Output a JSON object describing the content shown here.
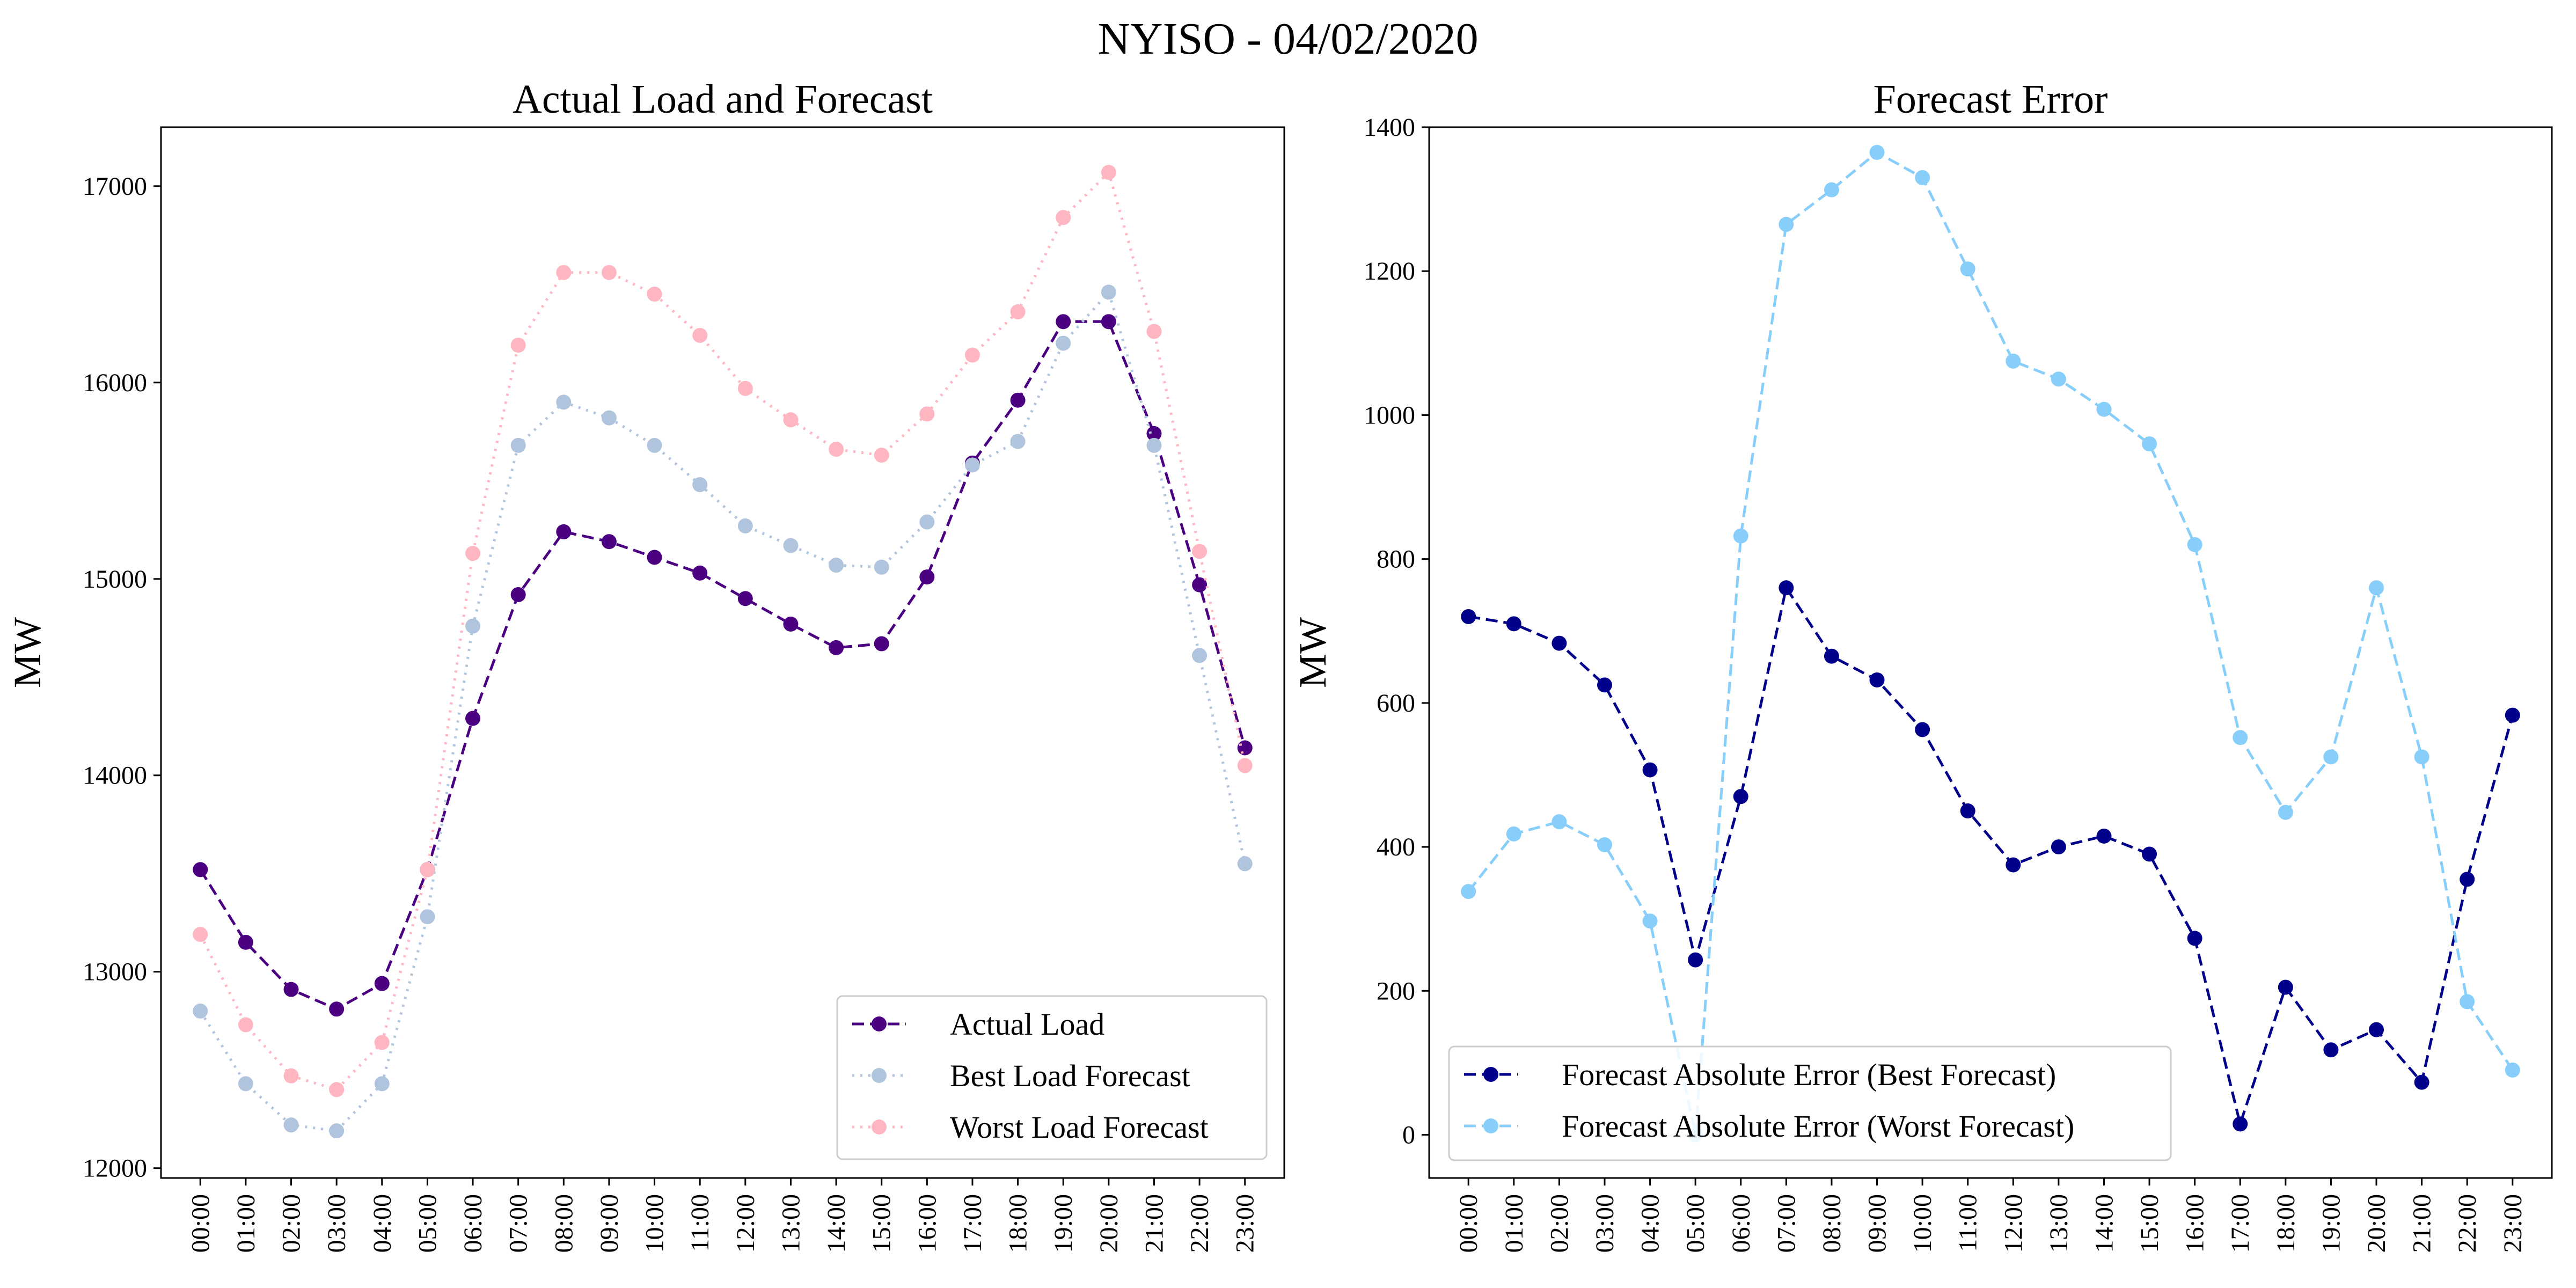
{
  "figure": {
    "suptitle": "NYISO - 04/02/2020"
  },
  "chart_data": [
    {
      "type": "line",
      "title": "Actual Load and Forecast",
      "xlabel": "",
      "ylabel": "MW",
      "ylim": [
        11950,
        17300
      ],
      "yticks": [
        12000,
        13000,
        14000,
        15000,
        16000,
        17000
      ],
      "grid": false,
      "legend_position": "lower-right",
      "categories": [
        "00:00",
        "01:00",
        "02:00",
        "03:00",
        "04:00",
        "05:00",
        "06:00",
        "07:00",
        "08:00",
        "09:00",
        "10:00",
        "11:00",
        "12:00",
        "13:00",
        "14:00",
        "15:00",
        "16:00",
        "17:00",
        "18:00",
        "19:00",
        "20:00",
        "21:00",
        "22:00",
        "23:00"
      ],
      "series": [
        {
          "name": "Actual Load",
          "color": "#4b0082",
          "dash": "dashed",
          "values": [
            13520,
            13150,
            12910,
            12810,
            12940,
            13520,
            14290,
            14920,
            15240,
            15190,
            15110,
            15030,
            14900,
            14770,
            14650,
            14670,
            15010,
            15590,
            15910,
            16310,
            16310,
            15740,
            14970,
            14140
          ]
        },
        {
          "name": "Best Load Forecast",
          "color": "#b0c4de",
          "dash": "dotted",
          "values": [
            12800,
            12430,
            12220,
            12190,
            12430,
            13280,
            14760,
            15680,
            15900,
            15820,
            15680,
            15480,
            15270,
            15170,
            15070,
            15060,
            15290,
            15580,
            15700,
            16200,
            16460,
            15680,
            14610,
            13550
          ]
        },
        {
          "name": "Worst Load Forecast",
          "color": "#ffb6c1",
          "dash": "dotted",
          "values": [
            13190,
            12730,
            12470,
            12400,
            12640,
            13520,
            15130,
            16190,
            16560,
            16560,
            16450,
            16240,
            15970,
            15810,
            15660,
            15630,
            15840,
            16140,
            16360,
            16840,
            17070,
            16260,
            15140,
            14050
          ]
        }
      ]
    },
    {
      "type": "line",
      "title": "Forecast Error",
      "xlabel": "",
      "ylabel": "MW",
      "ylim": [
        -60,
        1400
      ],
      "yticks": [
        0,
        200,
        400,
        600,
        800,
        1000,
        1200,
        1400
      ],
      "grid": false,
      "legend_position": "lower-left",
      "categories": [
        "00:00",
        "01:00",
        "02:00",
        "03:00",
        "04:00",
        "05:00",
        "06:00",
        "07:00",
        "08:00",
        "09:00",
        "10:00",
        "11:00",
        "12:00",
        "13:00",
        "14:00",
        "15:00",
        "16:00",
        "17:00",
        "18:00",
        "19:00",
        "20:00",
        "21:00",
        "22:00",
        "23:00"
      ],
      "series": [
        {
          "name": "Forecast Absolute Error (Best Forecast)",
          "color": "#00008b",
          "dash": "dashed",
          "values": [
            720,
            710,
            683,
            625,
            507,
            243,
            470,
            760,
            665,
            632,
            563,
            450,
            375,
            400,
            415,
            390,
            273,
            15,
            205,
            118,
            146,
            73,
            355,
            583
          ]
        },
        {
          "name": "Forecast Absolute Error (Worst Forecast)",
          "color": "#87cefa",
          "dash": "dashed",
          "values": [
            338,
            418,
            435,
            403,
            297,
            0,
            832,
            1265,
            1313,
            1365,
            1330,
            1203,
            1075,
            1050,
            1008,
            960,
            820,
            552,
            448,
            525,
            760,
            525,
            185,
            90
          ]
        }
      ]
    }
  ]
}
